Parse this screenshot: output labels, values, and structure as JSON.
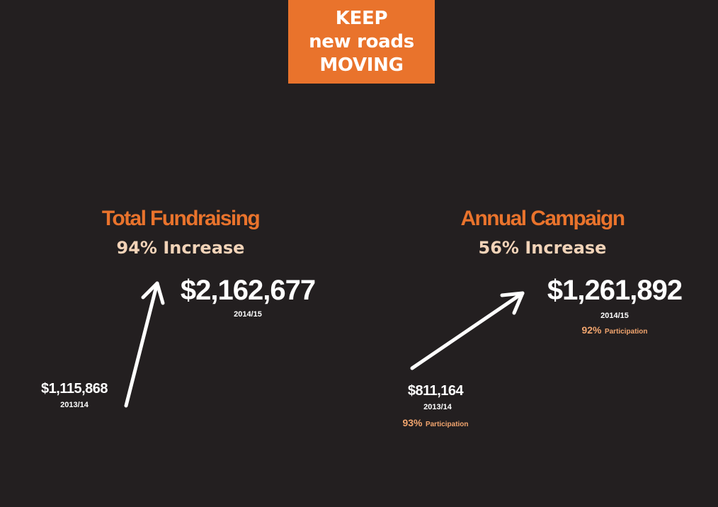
{
  "logo": {
    "line1": "KEEP",
    "line2": "new roads",
    "line3": "MOVING"
  },
  "colors": {
    "background": "#231f20",
    "accent": "#e9732c",
    "subtitle": "#f2d3b8",
    "participation": "#f2a56e"
  },
  "icons": [
    "arrow-up-icon",
    "arrow-up-right-icon"
  ],
  "total_fundraising": {
    "title": "Total Fundraising",
    "increase": "94% Increase",
    "current_amount": "$2,162,677",
    "current_year": "2014/15",
    "previous_amount": "$1,115,868",
    "previous_year": "2013/14"
  },
  "annual_campaign": {
    "title": "Annual Campaign",
    "increase": "56% Increase",
    "current_amount": "$1,261,892",
    "current_year": "2014/15",
    "current_participation_pct": "92%",
    "current_participation_label": "Participation",
    "previous_amount": "$811,164",
    "previous_year": "2013/14",
    "previous_participation_pct": "93%",
    "previous_participation_label": "Participation"
  }
}
